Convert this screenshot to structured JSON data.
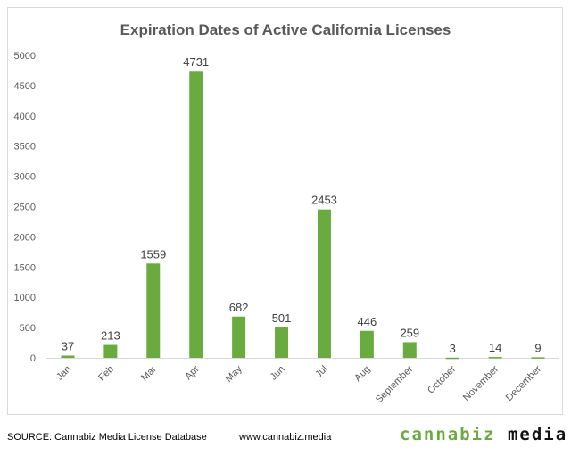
{
  "chart_data": {
    "type": "bar",
    "title": "Expiration Dates of Active California Licenses",
    "categories": [
      "Jan",
      "Feb",
      "Mar",
      "Apr",
      "May",
      "Jun",
      "Jul",
      "Aug",
      "September",
      "October",
      "November",
      "December"
    ],
    "values": [
      37,
      213,
      1559,
      4731,
      682,
      501,
      2453,
      446,
      259,
      3,
      14,
      9
    ],
    "ylim": [
      0,
      5000
    ],
    "yticks": [
      0,
      500,
      1000,
      1500,
      2000,
      2500,
      3000,
      3500,
      4000,
      4500,
      5000
    ],
    "xlabel": "",
    "ylabel": "",
    "grid": false,
    "legend": "none",
    "bar_color": "#6aab3f"
  },
  "footer": {
    "source": "SOURCE: Cannabiz Media License Database",
    "url": "www.cannabiz.media",
    "logo_part1": "cannabiz",
    "logo_part2": "media"
  }
}
